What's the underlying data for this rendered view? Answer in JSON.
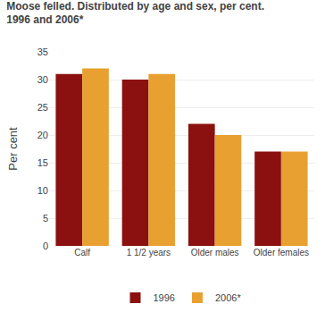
{
  "chart_data": {
    "type": "bar",
    "title": "Moose felled. Distributed by age and sex, per cent.",
    "subtitle": "1996 and 2006*",
    "y_label": "Per cent",
    "categories": [
      "Calf",
      "1 1/2 years",
      "Older males",
      "Older females"
    ],
    "series": [
      {
        "name": "1996",
        "color": "#8B1010",
        "values": [
          31,
          30,
          22,
          17
        ]
      },
      {
        "name": "2006*",
        "color": "#E8A030",
        "values": [
          32,
          31,
          20,
          17
        ]
      }
    ],
    "ylim": [
      0,
      35
    ],
    "yticks": [
      0,
      5,
      10,
      15,
      20,
      25,
      30,
      35
    ],
    "grid": true,
    "legend": "bottom"
  }
}
